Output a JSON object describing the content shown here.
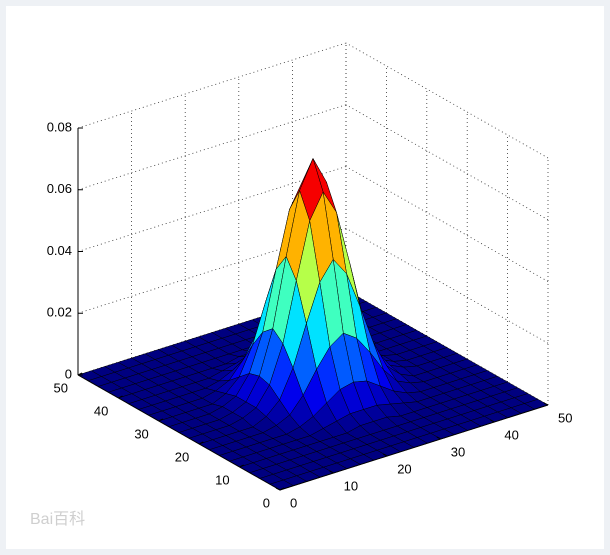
{
  "chart_data": {
    "type": "surface",
    "colormap": "jet",
    "edgecolor": "#000000",
    "x": [
      0,
      2.5,
      5,
      7.5,
      10,
      12.5,
      15,
      17.5,
      20,
      22.5,
      25,
      27.5,
      30,
      32.5,
      35,
      37.5,
      40,
      42.5,
      45,
      47.5,
      50
    ],
    "y": [
      0,
      2.5,
      5,
      7.5,
      10,
      12.5,
      15,
      17.5,
      20,
      22.5,
      25,
      27.5,
      30,
      32.5,
      35,
      37.5,
      40,
      42.5,
      45,
      47.5,
      50
    ],
    "z": [
      [
        0,
        0,
        0,
        0,
        0,
        0,
        0,
        0,
        0,
        0,
        0,
        0,
        0,
        0,
        0,
        0,
        0,
        0,
        0,
        0,
        0
      ],
      [
        0,
        0,
        0,
        0,
        0,
        0,
        0,
        0,
        0,
        0,
        0,
        0,
        0,
        0,
        0,
        0,
        0,
        0,
        0,
        0,
        0
      ],
      [
        0,
        0,
        0,
        0,
        0,
        0,
        0,
        0,
        0,
        0,
        0,
        0,
        0,
        0,
        0,
        0,
        0,
        0,
        0,
        0,
        0
      ],
      [
        0,
        0,
        0,
        0,
        0,
        0,
        0,
        0,
        0,
        0,
        0,
        0,
        0,
        0,
        0,
        0,
        0,
        0,
        0,
        0,
        0
      ],
      [
        0,
        0,
        0,
        0,
        0,
        0,
        0,
        0,
        0,
        0.001,
        0.001,
        0.001,
        0,
        0,
        0,
        0,
        0,
        0,
        0,
        0,
        0
      ],
      [
        0,
        0,
        0,
        0,
        0,
        0,
        0,
        0.001,
        0.002,
        0.003,
        0.003,
        0.003,
        0.002,
        0.001,
        0,
        0,
        0,
        0,
        0,
        0,
        0
      ],
      [
        0,
        0,
        0,
        0,
        0,
        0,
        0.001,
        0.003,
        0.006,
        0.009,
        0.01,
        0.009,
        0.006,
        0.003,
        0.001,
        0,
        0,
        0,
        0,
        0,
        0
      ],
      [
        0,
        0,
        0,
        0,
        0,
        0.001,
        0.003,
        0.008,
        0.015,
        0.021,
        0.024,
        0.021,
        0.015,
        0.008,
        0.003,
        0.001,
        0,
        0,
        0,
        0,
        0
      ],
      [
        0,
        0,
        0,
        0,
        0,
        0.002,
        0.006,
        0.015,
        0.028,
        0.04,
        0.046,
        0.04,
        0.028,
        0.015,
        0.006,
        0.002,
        0,
        0,
        0,
        0,
        0
      ],
      [
        0,
        0,
        0,
        0,
        0.001,
        0.003,
        0.009,
        0.021,
        0.04,
        0.058,
        0.066,
        0.058,
        0.04,
        0.021,
        0.009,
        0.003,
        0.001,
        0,
        0,
        0,
        0
      ],
      [
        0,
        0,
        0,
        0,
        0.001,
        0.003,
        0.01,
        0.024,
        0.046,
        0.066,
        0.075,
        0.066,
        0.046,
        0.024,
        0.01,
        0.003,
        0.001,
        0,
        0,
        0,
        0
      ],
      [
        0,
        0,
        0,
        0,
        0.001,
        0.003,
        0.009,
        0.021,
        0.04,
        0.058,
        0.066,
        0.058,
        0.04,
        0.021,
        0.009,
        0.003,
        0.001,
        0,
        0,
        0,
        0
      ],
      [
        0,
        0,
        0,
        0,
        0,
        0.002,
        0.006,
        0.015,
        0.028,
        0.04,
        0.046,
        0.04,
        0.028,
        0.015,
        0.006,
        0.002,
        0,
        0,
        0,
        0,
        0
      ],
      [
        0,
        0,
        0,
        0,
        0,
        0.001,
        0.003,
        0.008,
        0.015,
        0.021,
        0.024,
        0.021,
        0.015,
        0.008,
        0.003,
        0.001,
        0,
        0,
        0,
        0,
        0
      ],
      [
        0,
        0,
        0,
        0,
        0,
        0,
        0.001,
        0.003,
        0.006,
        0.009,
        0.01,
        0.009,
        0.006,
        0.003,
        0.001,
        0,
        0,
        0,
        0,
        0,
        0
      ],
      [
        0,
        0,
        0,
        0,
        0,
        0,
        0,
        0.001,
        0.002,
        0.003,
        0.003,
        0.003,
        0.002,
        0.001,
        0,
        0,
        0,
        0,
        0,
        0,
        0
      ],
      [
        0,
        0,
        0,
        0,
        0,
        0,
        0,
        0,
        0,
        0.001,
        0.001,
        0.001,
        0,
        0,
        0,
        0,
        0,
        0,
        0,
        0,
        0
      ],
      [
        0,
        0,
        0,
        0,
        0,
        0,
        0,
        0,
        0,
        0,
        0,
        0,
        0,
        0,
        0,
        0,
        0,
        0,
        0,
        0,
        0
      ],
      [
        0,
        0,
        0,
        0,
        0,
        0,
        0,
        0,
        0,
        0,
        0,
        0,
        0,
        0,
        0,
        0,
        0,
        0,
        0,
        0,
        0
      ],
      [
        0,
        0,
        0,
        0,
        0,
        0,
        0,
        0,
        0,
        0,
        0,
        0,
        0,
        0,
        0,
        0,
        0,
        0,
        0,
        0,
        0
      ],
      [
        0,
        0,
        0,
        0,
        0,
        0,
        0,
        0,
        0,
        0,
        0,
        0,
        0,
        0,
        0,
        0,
        0,
        0,
        0,
        0,
        0
      ]
    ],
    "xlim": [
      0,
      50
    ],
    "ylim": [
      0,
      50
    ],
    "zlim": [
      0,
      0.08
    ],
    "xticks": [
      0,
      10,
      20,
      30,
      40,
      50
    ],
    "yticks": [
      0,
      10,
      20,
      30,
      40,
      50
    ],
    "zticks": [
      0,
      0.02,
      0.04,
      0.06,
      0.08
    ],
    "grid": true,
    "watermark": "Bai百科"
  }
}
